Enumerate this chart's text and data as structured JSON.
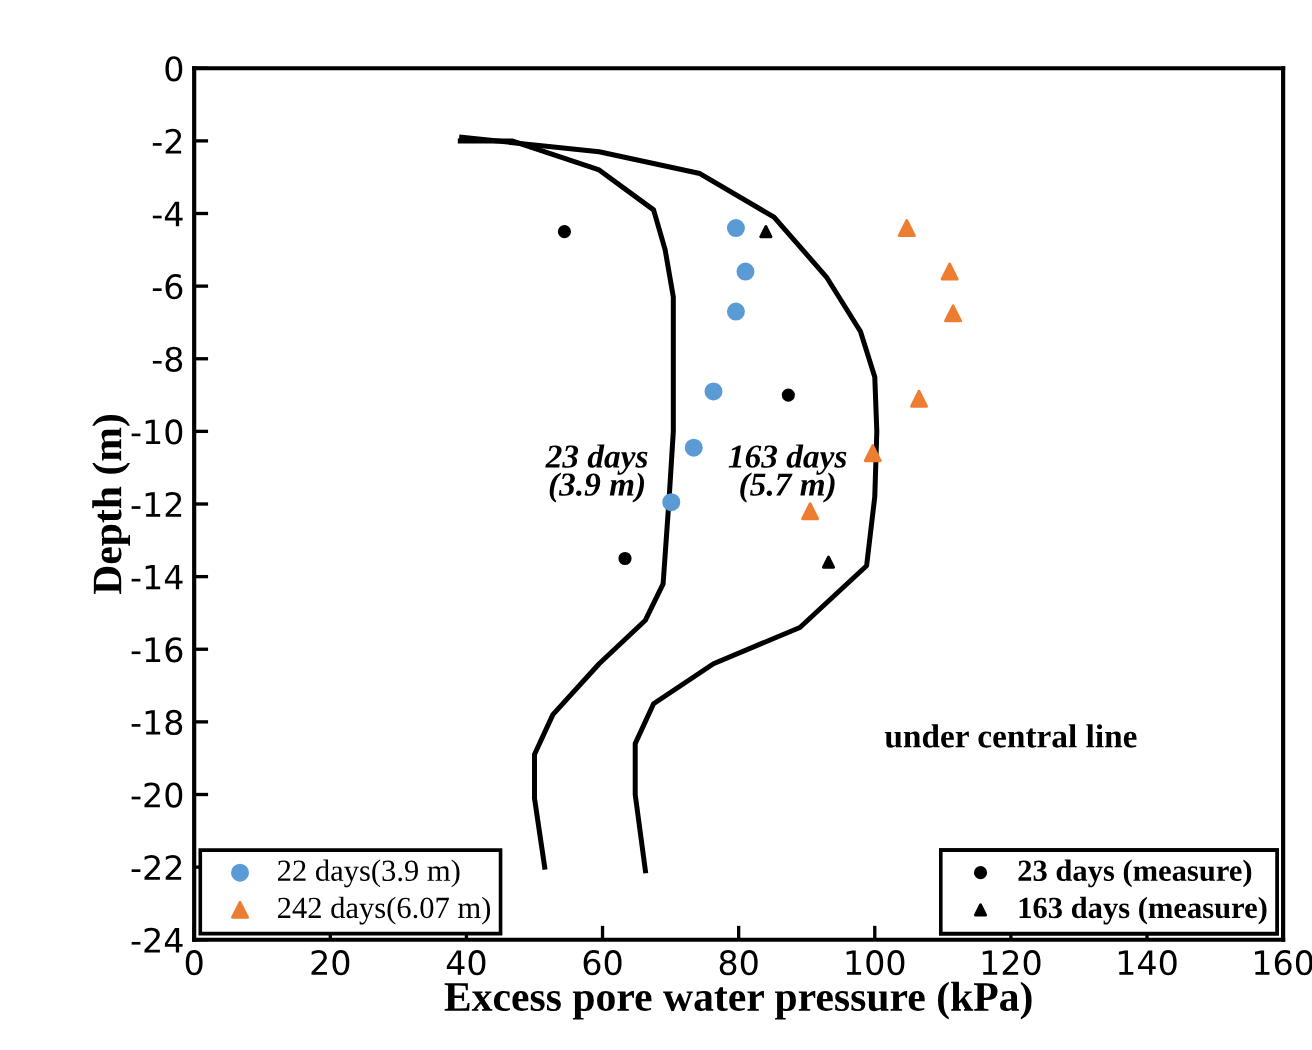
{
  "chart_data": {
    "type": "scatter",
    "xlabel": "Excess pore water pressure (kPa)",
    "ylabel": "Depth (m)",
    "xlim": [
      0,
      160
    ],
    "ylim": [
      -24,
      0
    ],
    "xticks": [
      0,
      20,
      40,
      60,
      80,
      100,
      120,
      140,
      160
    ],
    "yticks": [
      0,
      -2,
      -4,
      -6,
      -8,
      -10,
      -12,
      -14,
      -16,
      -18,
      -20,
      -22,
      -24
    ],
    "grid": false,
    "legend": [
      "bottom left",
      "bottom right"
    ],
    "series": [
      {
        "name": "22 days(3.9 m)",
        "color": "#5b9bd5",
        "marker": "circle",
        "x": [
          79.6,
          81,
          79.6,
          76.3,
          73.4,
          70.1
        ],
        "values": [
          -4.4,
          -5.6,
          -6.7,
          -8.9,
          -10.45,
          -11.95
        ]
      },
      {
        "name": "242 days(6.07 m)",
        "color": "#ed7d31",
        "marker": "triangle",
        "x": [
          104.7,
          111,
          111.5,
          106.5,
          99.7,
          90.5
        ],
        "values": [
          -4.4,
          -5.6,
          -6.75,
          -9.1,
          -10.6,
          -12.2
        ]
      },
      {
        "name": "23 days (measure)",
        "color": "#000000",
        "marker": "circle",
        "x": [
          54.4,
          87.3,
          63.3
        ],
        "values": [
          -4.5,
          -9.0,
          -13.5
        ]
      },
      {
        "name": "163 days (measure)",
        "color": "#000000",
        "marker": "triangle",
        "x": [
          84,
          93.2
        ],
        "values": [
          -4.5,
          -13.6
        ]
      },
      {
        "type": "line",
        "color": "#000000",
        "marker": "none",
        "x": [
          39.1,
          46.7,
          59.5,
          67.5,
          69.2,
          70.4,
          70.4,
          70.4,
          69.8,
          68.9,
          66.3,
          59.5,
          52.7,
          50,
          50,
          51.5
        ],
        "values": [
          -2.0,
          -2.0,
          -2.8,
          -3.9,
          -5.0,
          -6.3,
          -8.1,
          -10.0,
          -11.8,
          -14.2,
          -15.2,
          -16.4,
          -17.8,
          -18.9,
          -20.1,
          -22.0
        ]
      },
      {
        "type": "line",
        "color": "#000000",
        "marker": "none",
        "x": [
          39.3,
          59.5,
          74.3,
          85.2,
          92.9,
          97.9,
          100,
          100.3,
          100,
          98.8,
          89,
          76.3,
          67.5,
          64.8,
          64.8,
          66.3
        ],
        "values": [
          -1.9,
          -2.3,
          -2.9,
          -4.1,
          -5.75,
          -7.25,
          -8.5,
          -10.0,
          -11.8,
          -13.7,
          -15.4,
          -16.4,
          -17.5,
          -18.6,
          -20.0,
          -22.1
        ]
      }
    ],
    "annotations": [
      "23 days\n(3.9 m)",
      "163 days\n(5.7 m)",
      "under central line"
    ]
  }
}
